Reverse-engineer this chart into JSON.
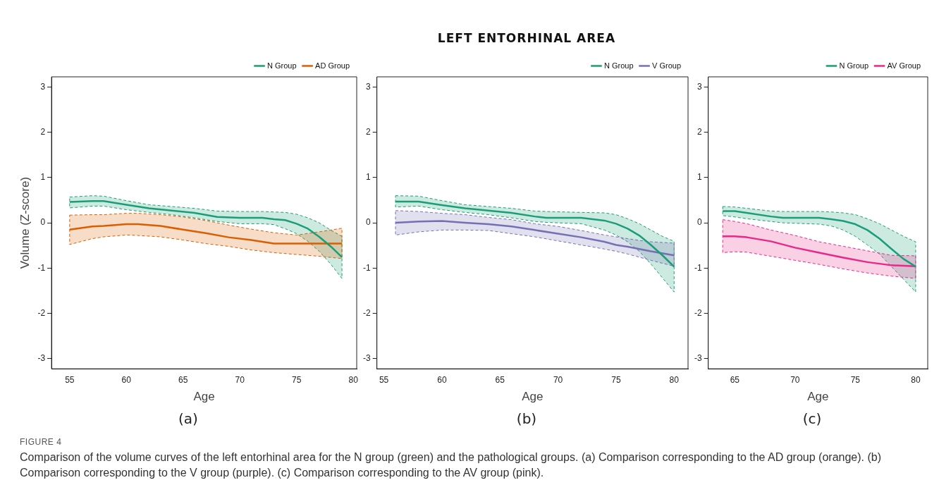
{
  "chart_data": [
    {
      "type": "line",
      "xlabel": "Age",
      "ylabel": "Volume (Z-score)",
      "annotations": [
        "(a)",
        "FIGURE 4",
        "Comparison of the volume curves of the left entorhinal area for the N group (green) and the pathological groups. (a) Comparison corresponding to the AD group (orange). (b) Comparison corresponding to the V group (purple). (c) Comparison corresponding to the AV group (pink)."
      ],
      "xlim": [
        53.4,
        80.3
      ],
      "ylim": [
        -3.23,
        3.23
      ],
      "xticks": [
        55,
        60,
        65,
        70,
        75,
        80
      ],
      "yticks": [
        -3,
        -2,
        -1,
        0,
        1,
        2,
        3
      ],
      "grid": false,
      "legend": "top right",
      "line_style": "solid",
      "marker": "none",
      "series": [
        {
          "name": "N Group",
          "color": "#1b9e77",
          "x": [
            55,
            57,
            58,
            60,
            62,
            64,
            66,
            68,
            70,
            72,
            73,
            74,
            75,
            76,
            77,
            78,
            79
          ],
          "values": [
            0.46,
            0.48,
            0.48,
            0.4,
            0.32,
            0.27,
            0.22,
            0.13,
            0.11,
            0.11,
            0.08,
            0.06,
            -0.02,
            -0.13,
            -0.31,
            -0.52,
            -0.76
          ],
          "upper": [
            0.57,
            0.6,
            0.59,
            0.49,
            0.4,
            0.36,
            0.32,
            0.26,
            0.25,
            0.25,
            0.24,
            0.23,
            0.19,
            0.11,
            0.0,
            -0.16,
            -0.3
          ],
          "lower": [
            0.33,
            0.37,
            0.37,
            0.29,
            0.23,
            0.18,
            0.11,
            0.03,
            -0.02,
            -0.02,
            -0.04,
            -0.13,
            -0.24,
            -0.41,
            -0.63,
            -0.91,
            -1.23
          ]
        },
        {
          "name": "AD Group",
          "color": "#d95f02",
          "x": [
            55,
            57,
            58,
            60,
            61,
            63,
            65,
            67,
            69,
            71,
            73,
            75,
            77,
            79
          ],
          "values": [
            -0.15,
            -0.08,
            -0.07,
            -0.03,
            -0.03,
            -0.07,
            -0.15,
            -0.23,
            -0.32,
            -0.38,
            -0.46,
            -0.46,
            -0.46,
            -0.46
          ],
          "upper": [
            0.17,
            0.18,
            0.18,
            0.21,
            0.21,
            0.18,
            0.13,
            0.05,
            -0.05,
            -0.14,
            -0.22,
            -0.27,
            -0.2,
            -0.12
          ],
          "lower": [
            -0.48,
            -0.35,
            -0.31,
            -0.27,
            -0.28,
            -0.31,
            -0.38,
            -0.46,
            -0.52,
            -0.6,
            -0.66,
            -0.7,
            -0.74,
            -0.79
          ]
        }
      ]
    },
    {
      "type": "line",
      "title": "LEFT ENTORHINAL AREA",
      "xlabel": "Age",
      "annotations": [
        "(b)"
      ],
      "xlim": [
        54.4,
        81.2
      ],
      "ylim": [
        -3.23,
        3.23
      ],
      "xticks": [
        55,
        60,
        65,
        70,
        75,
        80
      ],
      "yticks": [
        -3,
        -2,
        -1,
        0,
        1,
        2,
        3
      ],
      "grid": false,
      "legend": "top right",
      "line_style": "solid",
      "marker": "none",
      "series": [
        {
          "name": "N Group",
          "color": "#1b9e77",
          "x": [
            56,
            58,
            60,
            62,
            64,
            66,
            68,
            69,
            72,
            74,
            75,
            76,
            77,
            78,
            79,
            80
          ],
          "values": [
            0.47,
            0.47,
            0.39,
            0.32,
            0.27,
            0.22,
            0.14,
            0.11,
            0.11,
            0.05,
            -0.02,
            -0.13,
            -0.28,
            -0.49,
            -0.72,
            -0.97
          ],
          "upper": [
            0.6,
            0.59,
            0.49,
            0.4,
            0.36,
            0.32,
            0.26,
            0.25,
            0.23,
            0.22,
            0.18,
            0.09,
            -0.02,
            -0.16,
            -0.3,
            -0.41
          ],
          "lower": [
            0.35,
            0.37,
            0.29,
            0.23,
            0.18,
            0.11,
            0.03,
            0.01,
            -0.02,
            -0.16,
            -0.27,
            -0.42,
            -0.63,
            -0.91,
            -1.22,
            -1.53
          ]
        },
        {
          "name": "V Group",
          "color": "#7570b3",
          "x": [
            56,
            58,
            60,
            62,
            64,
            66,
            68,
            70,
            72,
            74,
            75,
            76,
            77,
            78,
            80
          ],
          "values": [
            0.0,
            0.03,
            0.04,
            0.0,
            -0.03,
            -0.08,
            -0.16,
            -0.24,
            -0.32,
            -0.42,
            -0.49,
            -0.53,
            -0.58,
            -0.63,
            -0.72
          ],
          "upper": [
            0.27,
            0.25,
            0.21,
            0.18,
            0.12,
            0.07,
            -0.02,
            -0.08,
            -0.17,
            -0.27,
            -0.31,
            -0.35,
            -0.39,
            -0.42,
            -0.45
          ],
          "lower": [
            -0.27,
            -0.2,
            -0.16,
            -0.16,
            -0.17,
            -0.24,
            -0.31,
            -0.4,
            -0.49,
            -0.58,
            -0.63,
            -0.69,
            -0.76,
            -0.83,
            -0.96
          ]
        }
      ]
    },
    {
      "type": "line",
      "xlabel": "Age",
      "annotations": [
        "(c)"
      ],
      "xlim": [
        62.8,
        81
      ],
      "ylim": [
        -3.23,
        3.23
      ],
      "xticks": [
        65,
        70,
        75,
        80
      ],
      "yticks": [
        -3,
        -2,
        -1,
        0,
        1,
        2,
        3
      ],
      "grid": false,
      "legend": "top right",
      "line_style": "solid",
      "marker": "none",
      "series": [
        {
          "name": "N Group",
          "color": "#1b9e77",
          "x": [
            64,
            65,
            66,
            68,
            69,
            72,
            73,
            74,
            75,
            76,
            77,
            78,
            79,
            80
          ],
          "values": [
            0.26,
            0.26,
            0.22,
            0.14,
            0.11,
            0.11,
            0.08,
            0.04,
            -0.03,
            -0.16,
            -0.35,
            -0.58,
            -0.8,
            -0.97
          ],
          "upper": [
            0.36,
            0.35,
            0.32,
            0.26,
            0.25,
            0.25,
            0.24,
            0.22,
            0.18,
            0.09,
            -0.02,
            -0.16,
            -0.3,
            -0.42
          ],
          "lower": [
            0.16,
            0.13,
            0.09,
            0.03,
            0.0,
            -0.03,
            -0.07,
            -0.16,
            -0.3,
            -0.49,
            -0.69,
            -0.97,
            -1.25,
            -1.53
          ]
        },
        {
          "name": "AV Group",
          "color": "#e7298a",
          "x": [
            64,
            65,
            66,
            68,
            70,
            72,
            74,
            76,
            78,
            80
          ],
          "values": [
            -0.3,
            -0.3,
            -0.32,
            -0.41,
            -0.55,
            -0.66,
            -0.77,
            -0.87,
            -0.94,
            -0.96
          ],
          "upper": [
            0.07,
            0.03,
            -0.02,
            -0.16,
            -0.28,
            -0.42,
            -0.52,
            -0.62,
            -0.72,
            -0.73
          ],
          "lower": [
            -0.66,
            -0.64,
            -0.65,
            -0.74,
            -0.83,
            -0.92,
            -1.02,
            -1.11,
            -1.18,
            -1.23
          ]
        }
      ]
    }
  ]
}
